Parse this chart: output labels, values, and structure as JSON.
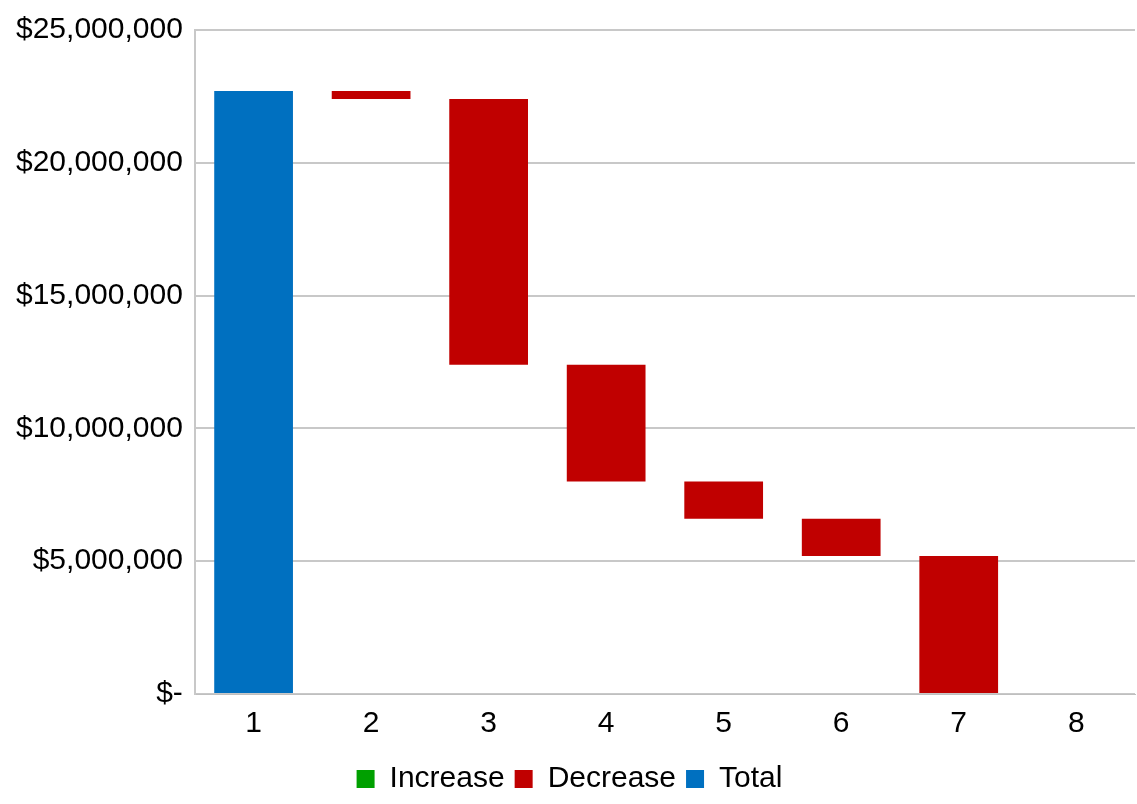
{
  "chart_data": {
    "type": "bar",
    "categories": [
      "1",
      "2",
      "3",
      "4",
      "5",
      "6",
      "7",
      "8"
    ],
    "series": [
      {
        "name": "Increase",
        "color": "#00a000",
        "values": [
          null,
          null,
          null,
          null,
          null,
          null,
          null,
          null
        ],
        "base": [
          null,
          null,
          null,
          null,
          null,
          null,
          null,
          null
        ]
      },
      {
        "name": "Decrease",
        "color": "#c00000",
        "values": [
          null,
          -300000,
          -10000000,
          -4400000,
          -1400000,
          -1400000,
          -5200000,
          null
        ],
        "base": [
          null,
          22700000,
          22400000,
          12400000,
          8000000,
          6600000,
          5200000,
          null
        ]
      },
      {
        "name": "Total",
        "color": "#0070c0",
        "values": [
          22700000,
          null,
          null,
          null,
          null,
          null,
          null,
          null
        ],
        "base": [
          0,
          null,
          null,
          null,
          null,
          null,
          null,
          null
        ]
      }
    ],
    "ylim": [
      0,
      25000000
    ],
    "yticks": [
      {
        "value": 0,
        "label": "$-"
      },
      {
        "value": 5000000,
        "label": "$5,000,000"
      },
      {
        "value": 10000000,
        "label": "$10,000,000"
      },
      {
        "value": 15000000,
        "label": "$15,000,000"
      },
      {
        "value": 20000000,
        "label": "$20,000,000"
      },
      {
        "value": 25000000,
        "label": "$25,000,000"
      }
    ],
    "grid": "y",
    "legend": "bottom"
  }
}
